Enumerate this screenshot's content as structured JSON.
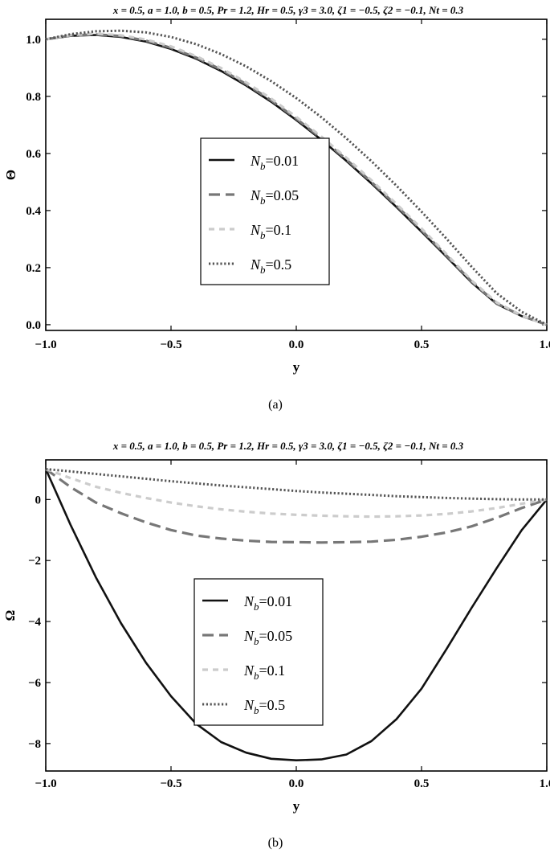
{
  "chart_data": [
    {
      "type": "line",
      "title": "x = 0.5, a = 1.0, b = 0.5, Pr = 1.2, Hr = 0.5, γ3 = 3.0, ζ1 = −0.5, ζ2 = −0.1, Nt = 0.3",
      "xlabel": "y",
      "ylabel": "Θ",
      "caption": "(a)",
      "xlim": [
        -1.0,
        1.0
      ],
      "ylim": [
        -0.02,
        1.07
      ],
      "xticks": [
        -1.0,
        -0.5,
        0.0,
        0.5,
        1.0
      ],
      "xtick_labels": [
        "−1.0",
        "−0.5",
        "0.0",
        "0.5",
        "1.0"
      ],
      "yticks": [
        0.0,
        0.2,
        0.4,
        0.6,
        0.8,
        1.0
      ],
      "ytick_labels": [
        "0.0",
        "0.2",
        "0.4",
        "0.6",
        "0.8",
        "1.0"
      ],
      "grid": false,
      "legend_position": "center-left",
      "x": [
        -1.0,
        -0.9,
        -0.8,
        -0.7,
        -0.6,
        -0.5,
        -0.4,
        -0.3,
        -0.2,
        -0.1,
        0.0,
        0.1,
        0.2,
        0.3,
        0.4,
        0.5,
        0.6,
        0.7,
        0.8,
        0.9,
        1.0
      ],
      "series": [
        {
          "name": "Nb=0.01",
          "label_base": "N",
          "label_sub": "b",
          "label_value": "=0.01",
          "style": "solid",
          "color": "#111111",
          "values": [
            1.0,
            1.012,
            1.015,
            1.008,
            0.992,
            0.966,
            0.932,
            0.889,
            0.838,
            0.781,
            0.717,
            0.648,
            0.574,
            0.495,
            0.412,
            0.326,
            0.238,
            0.148,
            0.073,
            0.03,
            0.0
          ]
        },
        {
          "name": "Nb=0.05",
          "label_base": "N",
          "label_sub": "b",
          "label_value": "=0.05",
          "style": "dashed",
          "color": "#777777",
          "values": [
            1.0,
            1.013,
            1.017,
            1.011,
            0.995,
            0.97,
            0.936,
            0.894,
            0.843,
            0.786,
            0.722,
            0.653,
            0.579,
            0.5,
            0.417,
            0.331,
            0.242,
            0.151,
            0.075,
            0.031,
            0.0
          ]
        },
        {
          "name": "Nb=0.1",
          "label_base": "N",
          "label_sub": "b",
          "label_value": "=0.1",
          "style": "dashed-light",
          "color": "#cccccc",
          "values": [
            1.0,
            1.015,
            1.02,
            1.014,
            0.999,
            0.975,
            0.941,
            0.899,
            0.849,
            0.792,
            0.728,
            0.659,
            0.585,
            0.506,
            0.423,
            0.337,
            0.247,
            0.155,
            0.078,
            0.032,
            0.0
          ]
        },
        {
          "name": "Nb=0.5",
          "label_base": "N",
          "label_sub": "b",
          "label_value": "=0.5",
          "style": "dotted",
          "color": "#555555",
          "values": [
            1.0,
            1.018,
            1.028,
            1.03,
            1.024,
            1.008,
            0.983,
            0.948,
            0.905,
            0.853,
            0.794,
            0.727,
            0.653,
            0.573,
            0.487,
            0.396,
            0.301,
            0.203,
            0.11,
            0.045,
            0.0
          ]
        }
      ]
    },
    {
      "type": "line",
      "title": "x = 0.5, a = 1.0, b = 0.5, Pr = 1.2, Hr = 0.5, γ3 = 3.0, ζ1 = −0.5, ζ2 = −0.1, Nt = 0.3",
      "xlabel": "y",
      "ylabel": "Ω",
      "caption": "(b)",
      "xlim": [
        -1.0,
        1.0
      ],
      "ylim": [
        -8.9,
        1.3
      ],
      "xticks": [
        -1.0,
        -0.5,
        0.0,
        0.5,
        1.0
      ],
      "xtick_labels": [
        "−1.0",
        "−0.5",
        "0.0",
        "0.5",
        "1.0"
      ],
      "yticks": [
        -8,
        -6,
        -4,
        -2,
        0
      ],
      "ytick_labels": [
        "−8",
        "−6",
        "−4",
        "−2",
        "0"
      ],
      "grid": false,
      "legend_position": "center-left",
      "x": [
        -1.0,
        -0.9,
        -0.8,
        -0.7,
        -0.6,
        -0.5,
        -0.4,
        -0.3,
        -0.2,
        -0.1,
        0.0,
        0.1,
        0.2,
        0.3,
        0.4,
        0.5,
        0.6,
        0.7,
        0.8,
        0.9,
        1.0
      ],
      "series": [
        {
          "name": "Nb=0.01",
          "label_base": "N",
          "label_sub": "b",
          "label_value": "=0.01",
          "style": "solid",
          "color": "#111111",
          "values": [
            1.0,
            -0.85,
            -2.55,
            -4.05,
            -5.35,
            -6.45,
            -7.35,
            -7.95,
            -8.3,
            -8.5,
            -8.55,
            -8.52,
            -8.36,
            -7.92,
            -7.2,
            -6.2,
            -4.9,
            -3.55,
            -2.25,
            -1.0,
            0.0
          ]
        },
        {
          "name": "Nb=0.05",
          "label_base": "N",
          "label_sub": "b",
          "label_value": "=0.05",
          "style": "dashed",
          "color": "#777777",
          "values": [
            1.0,
            0.4,
            -0.1,
            -0.45,
            -0.75,
            -1.0,
            -1.18,
            -1.28,
            -1.35,
            -1.39,
            -1.4,
            -1.41,
            -1.4,
            -1.38,
            -1.32,
            -1.22,
            -1.08,
            -0.88,
            -0.6,
            -0.28,
            0.0
          ]
        },
        {
          "name": "Nb=0.1",
          "label_base": "N",
          "label_sub": "b",
          "label_value": "=0.1",
          "style": "dashed-light",
          "color": "#cccccc",
          "values": [
            1.0,
            0.7,
            0.42,
            0.22,
            0.05,
            -0.1,
            -0.22,
            -0.32,
            -0.4,
            -0.46,
            -0.5,
            -0.53,
            -0.55,
            -0.56,
            -0.55,
            -0.52,
            -0.47,
            -0.39,
            -0.28,
            -0.14,
            0.0
          ]
        },
        {
          "name": "Nb=0.5",
          "label_base": "N",
          "label_sub": "b",
          "label_value": "=0.5",
          "style": "dotted",
          "color": "#555555",
          "values": [
            1.0,
            0.92,
            0.84,
            0.76,
            0.68,
            0.6,
            0.53,
            0.46,
            0.4,
            0.34,
            0.28,
            0.23,
            0.19,
            0.15,
            0.11,
            0.08,
            0.05,
            0.03,
            0.01,
            0.0,
            0.0
          ]
        }
      ]
    }
  ]
}
